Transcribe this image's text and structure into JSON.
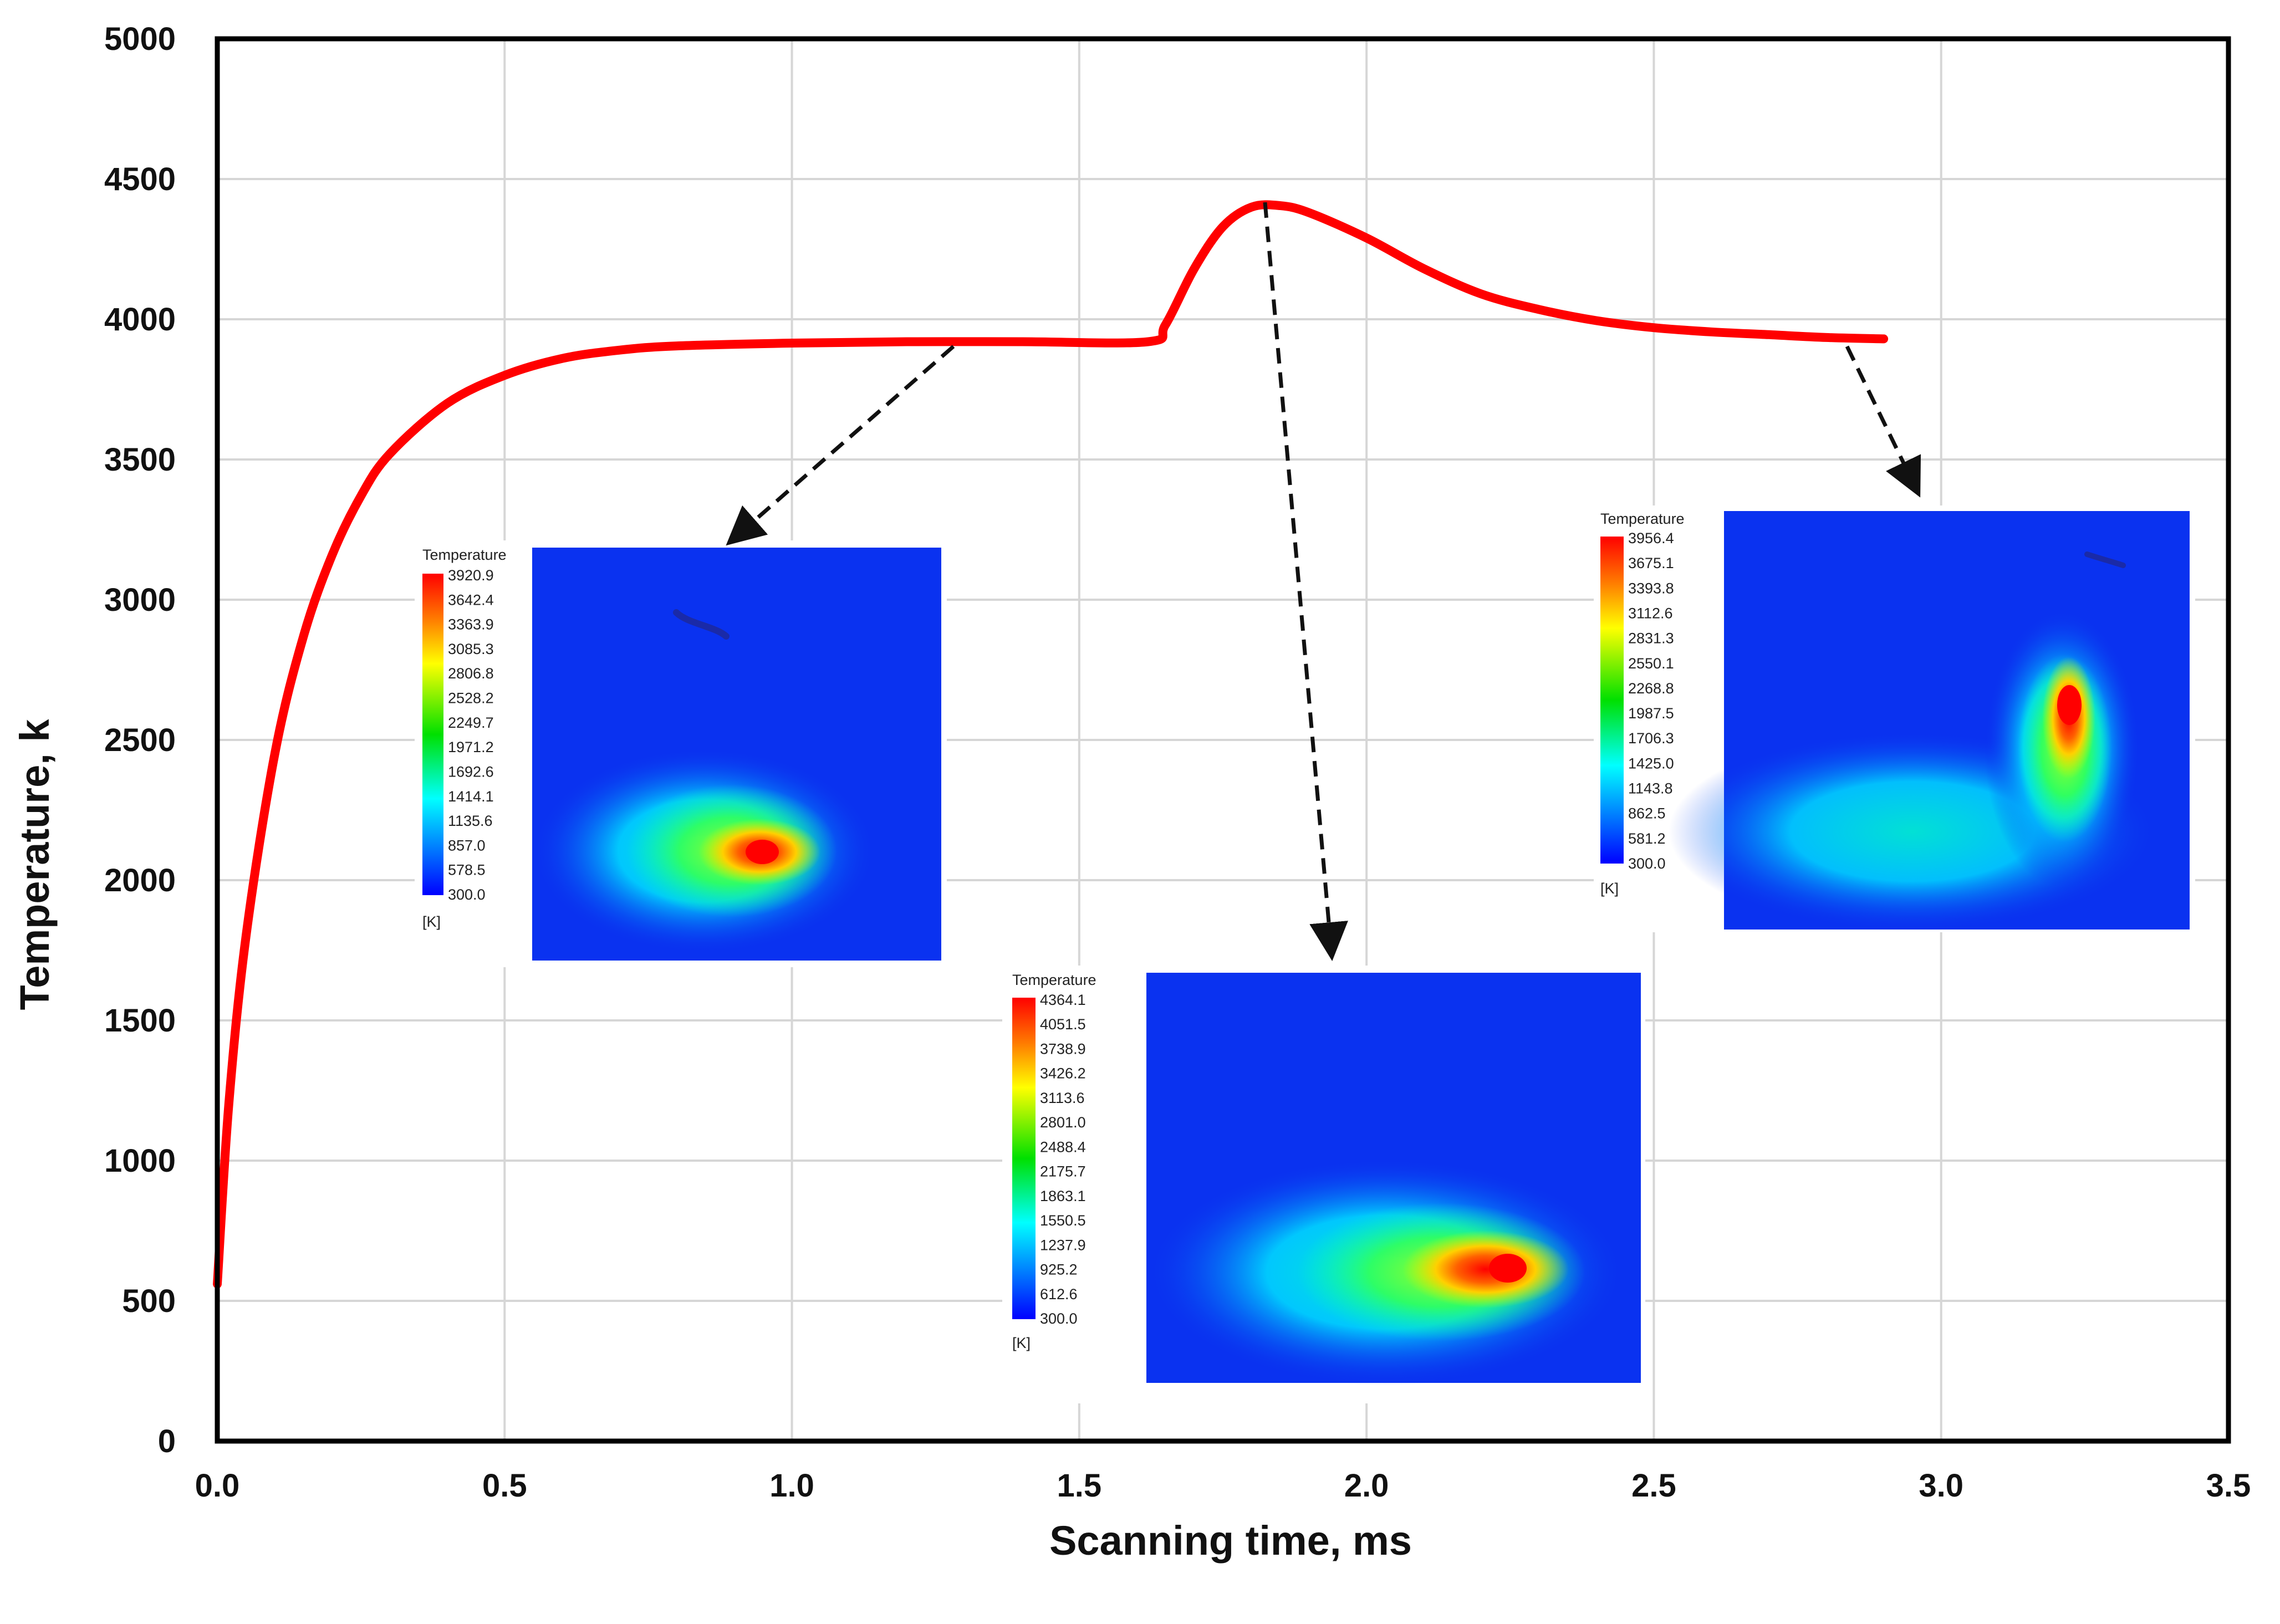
{
  "chart_data": {
    "type": "line",
    "title": "",
    "xlabel": "Scanning time, ms",
    "ylabel": "Temperature, k",
    "xlim": [
      0,
      3.5
    ],
    "ylim": [
      0,
      5000
    ],
    "x_ticks": [
      "0.0",
      "0.5",
      "1.0",
      "1.5",
      "2.0",
      "2.5",
      "3.0",
      "3.5"
    ],
    "y_ticks": [
      "0",
      "500",
      "1000",
      "1500",
      "2000",
      "2500",
      "3000",
      "3500",
      "4000",
      "4500",
      "5000"
    ],
    "grid": true,
    "series": [
      {
        "name": "Temperature",
        "color": "#ff0000",
        "x": [
          0.0,
          0.02,
          0.05,
          0.1,
          0.15,
          0.2,
          0.25,
          0.3,
          0.4,
          0.5,
          0.6,
          0.7,
          0.8,
          1.0,
          1.2,
          1.4,
          1.62,
          1.65,
          1.7,
          1.75,
          1.8,
          1.85,
          1.9,
          2.0,
          2.1,
          2.2,
          2.3,
          2.4,
          2.5,
          2.6,
          2.7,
          2.8,
          2.9
        ],
        "values": [
          560,
          1200,
          1800,
          2450,
          2870,
          3160,
          3370,
          3520,
          3700,
          3800,
          3860,
          3890,
          3905,
          3915,
          3920,
          3920,
          3920,
          3980,
          4180,
          4330,
          4400,
          4405,
          4380,
          4290,
          4180,
          4090,
          4035,
          3995,
          3970,
          3955,
          3945,
          3935,
          3930
        ]
      }
    ],
    "insets": [
      {
        "legend_title": "Temperature",
        "unit": "[K]",
        "legend_values": [
          "3920.9",
          "3642.4",
          "3363.9",
          "3085.3",
          "2806.8",
          "2528.2",
          "2249.7",
          "1971.2",
          "1692.6",
          "1414.1",
          "1135.6",
          "857.0",
          "578.5",
          "300.0"
        ],
        "arrow_from": [
          1.27,
          3920
        ]
      },
      {
        "legend_title": "Temperature",
        "unit": "[K]",
        "legend_values": [
          "4364.1",
          "4051.5",
          "3738.9",
          "3426.2",
          "3113.6",
          "2801.0",
          "2488.4",
          "2175.7",
          "1863.1",
          "1550.5",
          "1237.9",
          "925.2",
          "612.6",
          "300.0"
        ],
        "arrow_from": [
          1.81,
          4400
        ]
      },
      {
        "legend_title": "Temperature",
        "unit": "[K]",
        "legend_values": [
          "3956.4",
          "3675.1",
          "3393.8",
          "3112.6",
          "2831.3",
          "2550.1",
          "2268.8",
          "1987.5",
          "1706.3",
          "1425.0",
          "1143.8",
          "862.5",
          "581.2",
          "300.0"
        ],
        "arrow_from": [
          2.81,
          3930
        ]
      }
    ]
  }
}
